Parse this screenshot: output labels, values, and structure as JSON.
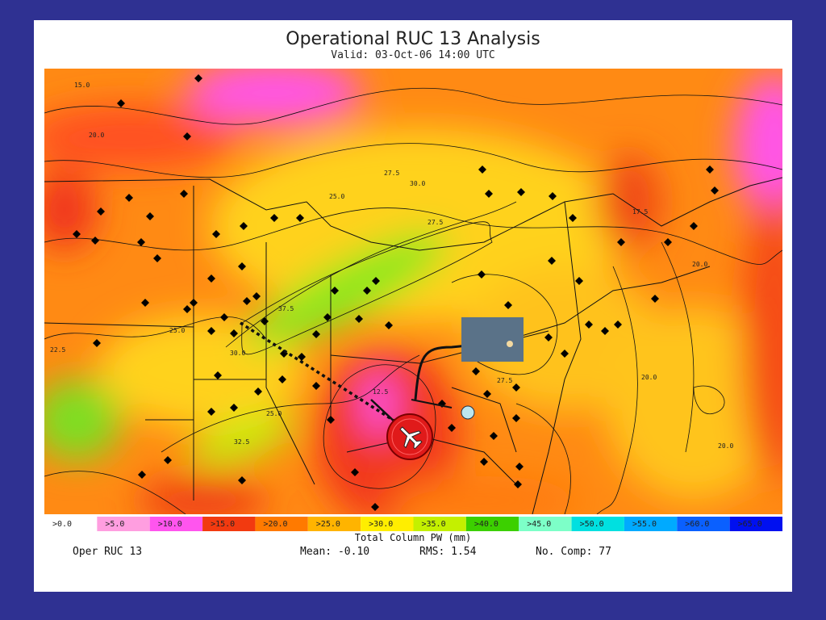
{
  "header": {
    "title": "Operational RUC 13 Analysis",
    "subtitle": "Valid: 03-Oct-06 14:00 UTC"
  },
  "legend": {
    "items": [
      {
        "label": ">0.0",
        "color": "#ffffff"
      },
      {
        "label": ">5.0",
        "color": "#ff9ee0"
      },
      {
        "label": ">10.0",
        "color": "#ff55ee"
      },
      {
        "label": ">15.0",
        "color": "#f23a10"
      },
      {
        "label": ">20.0",
        "color": "#ff7a00"
      },
      {
        "label": ">25.0",
        "color": "#ffb400"
      },
      {
        "label": ">30.0",
        "color": "#ffee00"
      },
      {
        "label": ">35.0",
        "color": "#c4f000"
      },
      {
        "label": ">40.0",
        "color": "#3cd000"
      },
      {
        "label": ">45.0",
        "color": "#7dffc8"
      },
      {
        "label": ">50.0",
        "color": "#00e0e0"
      },
      {
        "label": ">55.0",
        "color": "#00aaff"
      },
      {
        "label": ">60.0",
        "color": "#0a60ff"
      },
      {
        "label": ">65.0",
        "color": "#0010f0"
      }
    ],
    "caption": "Total Column PW (mm)"
  },
  "footer": {
    "model": "Oper RUC 13",
    "mean": "Mean: -0.10",
    "rms": "RMS: 1.54",
    "comp": "No. Comp: 77"
  },
  "map": {
    "contour_labels": [
      "15.0",
      "20.0",
      "27.5",
      "30.0",
      "25.0",
      "27.5",
      "25.0",
      "22.5",
      "30.0",
      "37.5",
      "25.0",
      "32.5",
      "12.5",
      "27.5",
      "20.0",
      "20.0",
      "17.5",
      "20.0"
    ]
  }
}
